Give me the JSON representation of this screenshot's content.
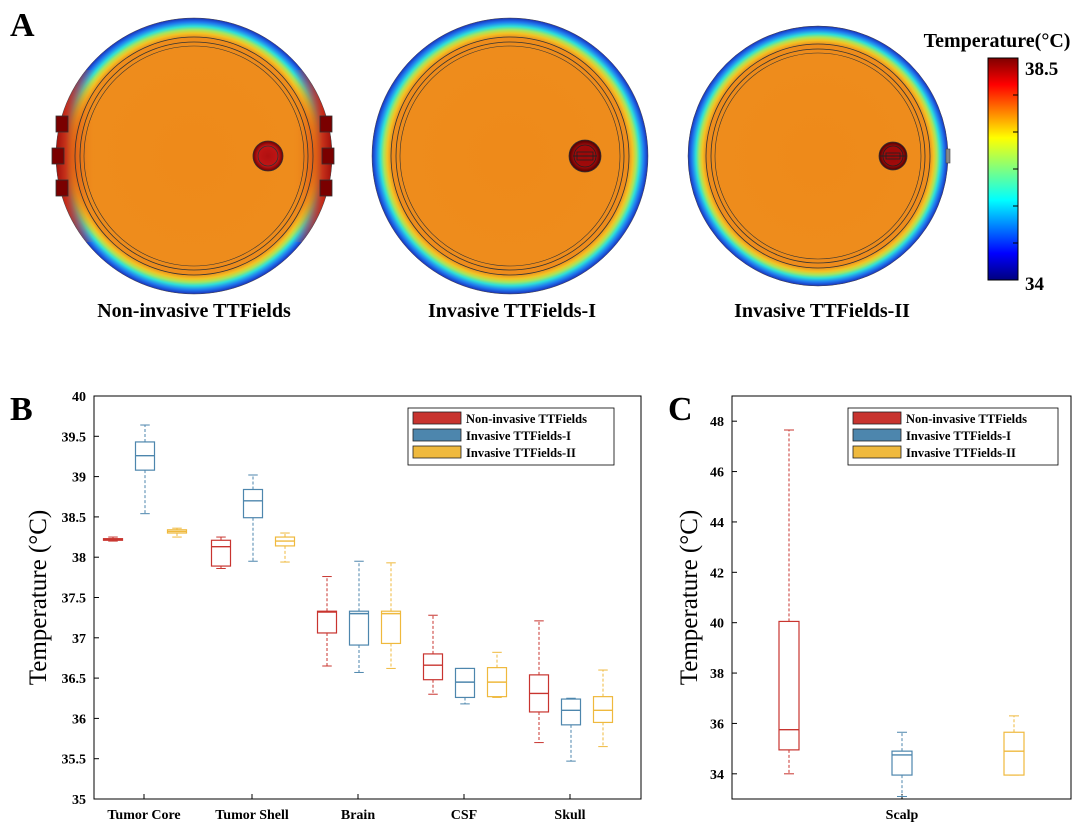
{
  "figure": {
    "panel_a": "A",
    "panel_b": "B",
    "panel_c": "C",
    "captions": [
      "Non-invasive TTFields",
      "Invasive TTFields-I",
      "Invasive TTFields-II"
    ],
    "colorbar": {
      "title": "Temperature(°C)",
      "max_label": "38.5",
      "min_label": "34"
    }
  },
  "colors": {
    "Non-invasive TTFields": "#c8342f",
    "Invasive TTFields-I": "#4d86ad",
    "Invasive TTFields-II": "#efb93d"
  },
  "chart_data": [
    {
      "type": "box",
      "ylabel": "Temperature (°C)",
      "ylim": [
        35,
        40
      ],
      "yticks": [
        35,
        35.5,
        36,
        36.5,
        37,
        37.5,
        38,
        38.5,
        39,
        39.5,
        40
      ],
      "ytick_labels": [
        "35",
        "35.5",
        "36",
        "36.5",
        "37",
        "37.5",
        "38",
        "38.5",
        "39",
        "39.5",
        "40"
      ],
      "categories": [
        "Tumor Core",
        "Tumor Shell",
        "Brain",
        "CSF",
        "Skull"
      ],
      "legend_position": "top-right",
      "series": [
        {
          "name": "Non-invasive TTFields",
          "boxes": [
            {
              "min": 38.2,
              "q1": 38.21,
              "median": 38.22,
              "q3": 38.23,
              "max": 38.25
            },
            {
              "min": 37.86,
              "q1": 37.89,
              "median": 38.13,
              "q3": 38.21,
              "max": 38.25
            },
            {
              "min": 36.65,
              "q1": 37.06,
              "median": 37.32,
              "q3": 37.33,
              "max": 37.76
            },
            {
              "min": 36.3,
              "q1": 36.48,
              "median": 36.66,
              "q3": 36.8,
              "max": 37.28
            },
            {
              "min": 35.7,
              "q1": 36.08,
              "median": 36.31,
              "q3": 36.54,
              "max": 37.21
            }
          ]
        },
        {
          "name": "Invasive TTFields-I",
          "boxes": [
            {
              "min": 38.54,
              "q1": 39.08,
              "median": 39.26,
              "q3": 39.43,
              "max": 39.64
            },
            {
              "min": 37.95,
              "q1": 38.49,
              "median": 38.7,
              "q3": 38.84,
              "max": 39.02
            },
            {
              "min": 36.57,
              "q1": 36.91,
              "median": 37.3,
              "q3": 37.33,
              "max": 37.95
            },
            {
              "min": 36.18,
              "q1": 36.26,
              "median": 36.45,
              "q3": 36.62,
              "max": 36.62
            },
            {
              "min": 35.47,
              "q1": 35.92,
              "median": 36.1,
              "q3": 36.24,
              "max": 36.25
            }
          ]
        },
        {
          "name": "Invasive TTFields-II",
          "boxes": [
            {
              "min": 38.25,
              "q1": 38.3,
              "median": 38.32,
              "q3": 38.34,
              "max": 38.36
            },
            {
              "min": 37.94,
              "q1": 38.14,
              "median": 38.2,
              "q3": 38.25,
              "max": 38.3
            },
            {
              "min": 36.62,
              "q1": 36.93,
              "median": 37.3,
              "q3": 37.33,
              "max": 37.93
            },
            {
              "min": 36.26,
              "q1": 36.27,
              "median": 36.45,
              "q3": 36.63,
              "max": 36.82
            },
            {
              "min": 35.65,
              "q1": 35.95,
              "median": 36.1,
              "q3": 36.27,
              "max": 36.6
            }
          ]
        }
      ]
    },
    {
      "type": "box",
      "ylabel": "Temperature (°C)",
      "ylim": [
        33,
        49
      ],
      "yticks": [
        34,
        36,
        38,
        40,
        42,
        44,
        46,
        48
      ],
      "ytick_labels": [
        "34",
        "36",
        "38",
        "40",
        "42",
        "44",
        "46",
        "48"
      ],
      "categories": [
        "Scalp"
      ],
      "legend_position": "top-right",
      "series": [
        {
          "name": "Non-invasive TTFields",
          "boxes": [
            {
              "min": 34.0,
              "q1": 34.95,
              "median": 35.75,
              "q3": 40.05,
              "max": 47.65
            }
          ]
        },
        {
          "name": "Invasive TTFields-I",
          "boxes": [
            {
              "min": 33.1,
              "q1": 33.95,
              "median": 34.75,
              "q3": 34.9,
              "max": 35.65
            }
          ]
        },
        {
          "name": "Invasive TTFields-II",
          "boxes": [
            {
              "min": 33.95,
              "q1": 33.95,
              "median": 34.9,
              "q3": 35.65,
              "max": 36.3
            }
          ]
        }
      ]
    }
  ]
}
